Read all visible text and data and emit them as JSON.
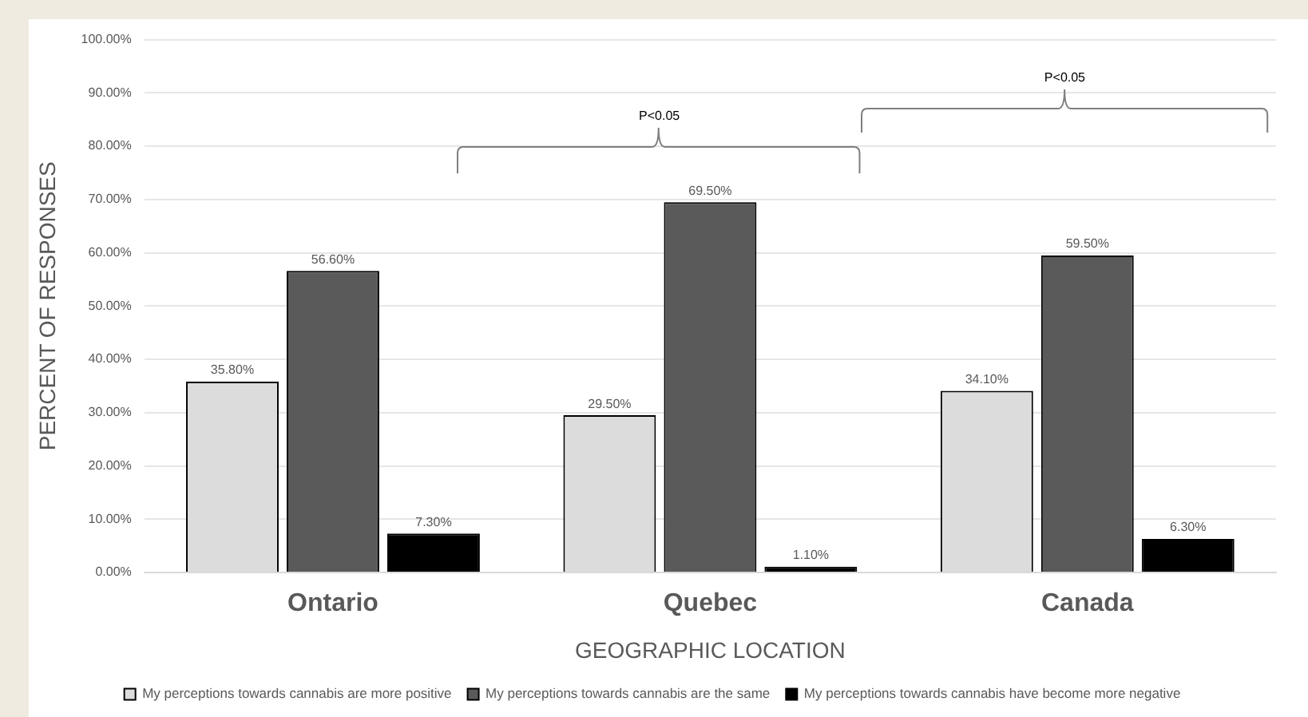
{
  "chart_data": {
    "type": "bar",
    "xlabel": "GEOGRAPHIC LOCATION",
    "ylabel": "PERCENT OF RESPONSES",
    "categories": [
      "Ontario",
      "Quebec",
      "Canada"
    ],
    "series": [
      {
        "name": "My perceptions towards cannabis are more positive",
        "color": "#dcdcdc",
        "values": [
          35.8,
          29.5,
          34.1
        ],
        "value_labels": [
          "35.80%",
          "29.50%",
          "34.10%"
        ]
      },
      {
        "name": "My perceptions towards cannabis are the same",
        "color": "#5a5a5a",
        "values": [
          56.6,
          69.5,
          59.5
        ],
        "value_labels": [
          "56.60%",
          "69.50%",
          "59.50%"
        ]
      },
      {
        "name": "My perceptions towards cannabis have become more negative",
        "color": "#000000",
        "values": [
          7.3,
          1.1,
          6.3
        ],
        "value_labels": [
          "7.30%",
          "1.10%",
          "6.30%"
        ]
      }
    ],
    "ylim": [
      0,
      100
    ],
    "yticks": [
      {
        "value": 0,
        "label": "0.00%"
      },
      {
        "value": 10,
        "label": "10.00%"
      },
      {
        "value": 20,
        "label": "20.00%"
      },
      {
        "value": 30,
        "label": "30.00%"
      },
      {
        "value": 40,
        "label": "40.00%"
      },
      {
        "value": 50,
        "label": "50.00%"
      },
      {
        "value": 60,
        "label": "60.00%"
      },
      {
        "value": 70,
        "label": "70.00%"
      },
      {
        "value": 80,
        "label": "80.00%"
      },
      {
        "value": 90,
        "label": "90.00%"
      },
      {
        "value": 100,
        "label": "100.00%"
      }
    ],
    "annotations": [
      "P<0.05",
      "P<0.05"
    ],
    "grid": "y",
    "legend": "bottom"
  }
}
